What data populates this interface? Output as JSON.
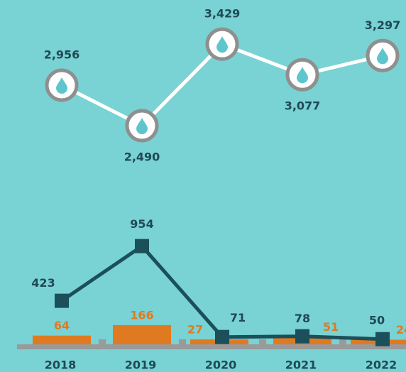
{
  "chart_data": [
    {
      "type": "line",
      "categories": [
        "2018",
        "2019",
        "2020",
        "2021",
        "2022"
      ],
      "values": [
        2956,
        2490,
        3429,
        3077,
        3297
      ],
      "value_labels": [
        "2,956",
        "2,490",
        "3,429",
        "3,077",
        "3,297"
      ],
      "color": "#ffffff",
      "ylim": [
        2000,
        3700
      ]
    },
    {
      "type": "bar-line",
      "categories": [
        "2018",
        "2019",
        "2020",
        "2021",
        "2022"
      ],
      "series": [
        {
          "type": "bar",
          "color": "#e07a20",
          "values": [
            64,
            166,
            27,
            51,
            24
          ]
        },
        {
          "type": "line",
          "color": "#1b4f5a",
          "values": [
            423,
            954,
            71,
            78,
            50
          ]
        }
      ],
      "ylim": [
        0,
        1000
      ]
    }
  ]
}
